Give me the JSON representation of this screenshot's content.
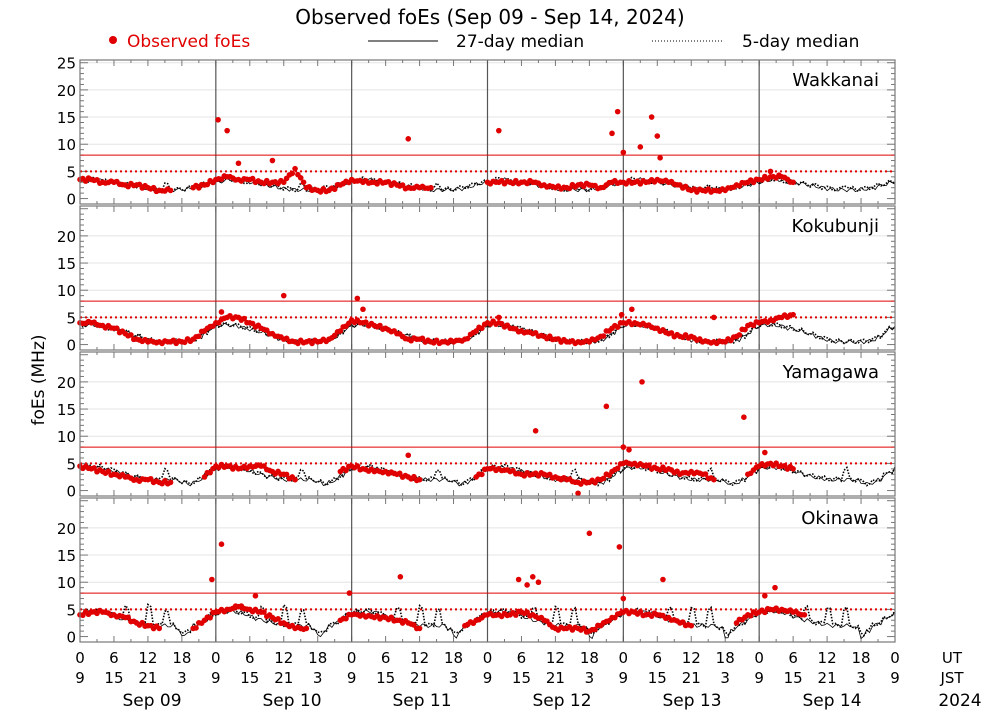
{
  "chart_data": {
    "type": "scatter",
    "title": "Observed foEs (Sep 09 - Sep 14, 2024)",
    "ylabel": "foEs (MHz)",
    "legend": {
      "placement": "top",
      "observed": "Observed foEs",
      "median27": "27-day median",
      "median5": "5-day median"
    },
    "colors": {
      "observed": "#e00000",
      "median": "#000000",
      "threshold": "#e00000"
    },
    "ylim": [
      -1,
      25.5
    ],
    "thresholds": {
      "solid": 8,
      "dotted": 5
    },
    "x_hours_range": [
      0,
      144
    ],
    "ut_ticks": [
      "0",
      "6",
      "12",
      "18"
    ],
    "jst_ticks": [
      "9",
      "15",
      "21",
      "3"
    ],
    "ut_label": "UT",
    "jst_label": "JST",
    "dates": [
      "Sep 09",
      "Sep 10",
      "Sep 11",
      "Sep 12",
      "Sep 13",
      "Sep 14"
    ],
    "year": "2024",
    "sample_step_hours": 2,
    "stations": [
      {
        "name": "Wakkanai",
        "yticks": [
          0,
          5,
          10,
          15,
          20,
          25
        ],
        "median27_diurnal": [
          3,
          3.2,
          3.5,
          3.5,
          3.2,
          3,
          3,
          2.8,
          2.6,
          2.4,
          2.2,
          2,
          1.8,
          1.7,
          1.6,
          1.6,
          1.6,
          1.6,
          1.7,
          1.8,
          2,
          2.3,
          2.6,
          2.9
        ],
        "median5_diurnal": [
          3.2,
          3.5,
          3.6,
          3.4,
          3.2,
          3.1,
          3,
          2.9,
          2.7,
          2.5,
          2.3,
          2.1,
          1.9,
          1.8,
          1.7,
          2.5,
          1.8,
          1.7,
          1.8,
          2,
          2.2,
          2.5,
          2.8,
          3
        ],
        "observed": [
          3.5,
          3.5,
          3,
          3,
          2.5,
          2.5,
          2,
          1.5,
          1.5,
          null,
          2,
          2.5,
          3.5,
          4,
          3.5,
          3.5,
          3,
          3,
          3,
          5.5,
          2,
          1.5,
          1.5,
          2.5,
          3.5,
          3,
          3,
          3,
          2.5,
          2,
          2,
          2,
          null,
          null,
          null,
          null,
          3,
          3,
          3,
          3,
          3,
          2.5,
          2,
          2,
          2.5,
          2.5,
          2,
          3,
          3,
          3,
          3,
          3.5,
          3,
          2.5,
          1.5,
          1.5,
          1.5,
          1.5,
          2.5,
          3,
          3.5,
          4,
          4,
          3,
          null,
          null,
          null,
          null,
          null,
          null,
          null,
          null
        ],
        "outliers": [
          [
            24.4,
            14.5
          ],
          [
            26,
            12.5
          ],
          [
            28,
            6.5
          ],
          [
            34,
            7
          ],
          [
            58,
            11
          ],
          [
            74,
            12.5
          ],
          [
            94,
            12
          ],
          [
            95,
            16
          ],
          [
            96,
            8.5
          ],
          [
            99,
            9.5
          ],
          [
            101,
            15
          ],
          [
            102,
            11.5
          ],
          [
            102.5,
            7.5
          ],
          [
            122,
            5
          ]
        ]
      },
      {
        "name": "Kokubunji",
        "yticks": [
          0,
          5,
          10,
          15,
          20
        ],
        "median27_diurnal": [
          3.5,
          3.6,
          3.6,
          3.5,
          3.3,
          3,
          2.8,
          2.5,
          2.2,
          1.8,
          1.5,
          1.1,
          0.8,
          0.6,
          0.5,
          0.5,
          0.5,
          0.5,
          0.5,
          0.6,
          0.9,
          1.4,
          2.2,
          3
        ],
        "median5_diurnal": [
          3.6,
          3.7,
          3.7,
          3.6,
          3.4,
          3.1,
          2.9,
          2.6,
          2.3,
          1.9,
          1.6,
          1.2,
          0.9,
          0.7,
          0.6,
          0.6,
          0.6,
          0.6,
          0.6,
          0.7,
          1,
          1.5,
          2.3,
          3.1
        ],
        "observed": [
          4,
          4,
          3.5,
          3,
          2,
          1,
          0.5,
          0.5,
          0.5,
          0.5,
          1,
          2.5,
          4,
          5,
          5,
          4,
          3,
          2,
          1,
          0.5,
          0.5,
          0.5,
          1,
          2.5,
          4.5,
          4,
          3.5,
          3,
          2,
          1,
          1,
          0.5,
          0.5,
          0.5,
          1,
          2.5,
          4,
          4,
          3,
          2.5,
          2,
          1.5,
          1,
          0.5,
          0.5,
          0.5,
          1.5,
          3,
          4,
          4,
          3.5,
          3,
          2,
          1.5,
          1.5,
          0.5,
          0.5,
          0.5,
          1.5,
          3.5,
          4,
          4.5,
          5,
          5.5,
          null,
          null,
          null,
          null,
          null,
          null,
          null,
          null
        ],
        "outliers": [
          [
            36,
            9
          ],
          [
            49,
            8.5
          ],
          [
            50,
            6.5
          ],
          [
            25,
            6
          ],
          [
            74,
            5
          ],
          [
            95.7,
            5.5
          ],
          [
            97.5,
            6.5
          ],
          [
            112,
            5
          ]
        ]
      },
      {
        "name": "Yamagawa",
        "yticks": [
          0,
          5,
          10,
          15,
          20
        ],
        "median27_diurnal": [
          4,
          4.2,
          4.3,
          4.2,
          4,
          3.8,
          3.5,
          3.2,
          2.9,
          2.6,
          2.4,
          2.2,
          2,
          2,
          2,
          2,
          2,
          1.9,
          1.5,
          1.2,
          1.5,
          2,
          2.8,
          3.5
        ],
        "median5_diurnal": [
          4.2,
          4.4,
          4.5,
          4.4,
          4.1,
          3.9,
          3.6,
          3.3,
          3,
          2.7,
          2.5,
          2.3,
          2.1,
          2.1,
          2.1,
          4,
          2.1,
          2,
          1.6,
          1.3,
          1.6,
          2.1,
          2.9,
          3.6
        ],
        "observed": [
          4.5,
          4,
          3.5,
          3,
          2.5,
          2,
          2,
          1.5,
          1.5,
          null,
          null,
          2.5,
          4.5,
          4.5,
          4,
          4.5,
          4.5,
          3.5,
          3,
          2,
          null,
          null,
          null,
          3.5,
          4.5,
          4,
          3.5,
          3.5,
          3,
          2.5,
          2,
          null,
          null,
          null,
          null,
          2.5,
          4,
          4,
          3.5,
          3,
          3,
          3,
          2.5,
          2,
          1.5,
          1.5,
          2,
          3.5,
          5,
          5,
          4.5,
          4,
          4,
          3,
          3.5,
          3,
          2,
          null,
          null,
          3,
          4.5,
          5,
          4.5,
          4,
          null,
          null,
          null,
          null,
          null,
          null,
          null,
          null
        ],
        "outliers": [
          [
            58,
            6.5
          ],
          [
            80.5,
            11
          ],
          [
            85,
            2
          ],
          [
            88,
            -0.5
          ],
          [
            93,
            15.5
          ],
          [
            96,
            8
          ],
          [
            97,
            7.5
          ],
          [
            99.3,
            20
          ],
          [
            117.3,
            13.5
          ],
          [
            121,
            7
          ]
        ]
      },
      {
        "name": "Okinawa",
        "yticks": [
          0,
          5,
          10,
          15,
          20
        ],
        "median27_diurnal": [
          4.2,
          4.5,
          4.6,
          4.6,
          4.4,
          4.1,
          3.7,
          3.3,
          3,
          2.7,
          2.5,
          2.3,
          2.1,
          2,
          2,
          2,
          2,
          1.5,
          0,
          1,
          2,
          2.5,
          3.2,
          3.9
        ],
        "median5_diurnal": [
          4.4,
          4.7,
          4.8,
          4.7,
          4.5,
          4.2,
          3.8,
          3.4,
          5.5,
          2.8,
          2.6,
          2.4,
          5.5,
          2.1,
          2.1,
          5,
          2.1,
          1.6,
          0.5,
          1.2,
          2.1,
          2.6,
          3.3,
          4
        ],
        "observed": [
          4,
          4.5,
          4.5,
          4,
          3.5,
          2.5,
          2,
          1.5,
          null,
          null,
          1.5,
          3,
          4.5,
          5,
          5.5,
          5,
          4.5,
          3.5,
          2.5,
          1.5,
          1.5,
          null,
          null,
          3,
          4,
          4,
          3.5,
          3.5,
          3,
          2.5,
          1.5,
          null,
          null,
          null,
          2,
          3,
          4,
          4,
          4,
          4.5,
          4,
          3,
          1.5,
          1.5,
          1.5,
          1,
          2,
          3.5,
          4.5,
          4.5,
          4,
          4,
          3.5,
          2.5,
          2,
          null,
          null,
          null,
          2.5,
          4,
          4.5,
          5,
          5,
          4.5,
          4,
          null,
          null,
          null,
          null,
          null,
          null,
          null
        ],
        "outliers": [
          [
            23.3,
            10.5
          ],
          [
            25,
            17
          ],
          [
            31,
            7.5
          ],
          [
            47.6,
            8
          ],
          [
            56.6,
            11
          ],
          [
            77.5,
            10.5
          ],
          [
            79,
            9.5
          ],
          [
            80,
            11
          ],
          [
            81,
            10
          ],
          [
            90,
            19
          ],
          [
            95.3,
            16.5
          ],
          [
            96,
            7
          ],
          [
            103,
            10.5
          ],
          [
            122.8,
            9
          ],
          [
            121,
            7.5
          ]
        ]
      }
    ]
  }
}
